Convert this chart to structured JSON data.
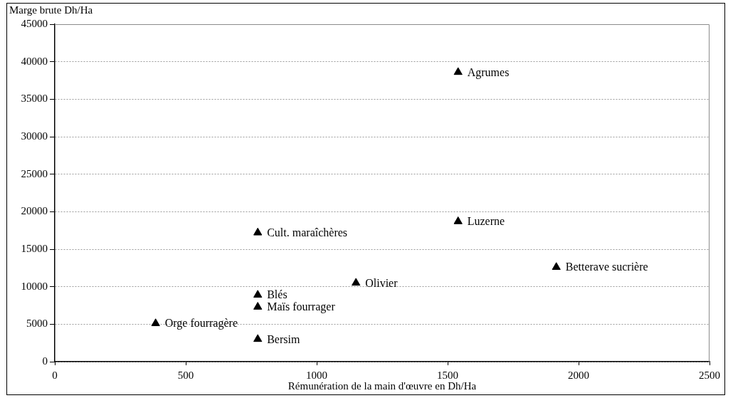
{
  "chart_data": {
    "type": "scatter",
    "ylabel": "Marge brute Dh/Ha",
    "xlabel": "Rémunération de la main d'œuvre en Dh/Ha",
    "x": [
      1540,
      1540,
      1915,
      1150,
      775,
      775,
      775,
      385,
      775
    ],
    "values": [
      38600,
      18700,
      12600,
      10500,
      17200,
      8900,
      7300,
      5100,
      3000
    ],
    "color": "#000000",
    "marker": "triangle",
    "xlim": [
      0,
      2500
    ],
    "xticks": [
      0,
      500,
      1000,
      1500,
      2000,
      2500
    ],
    "ylim": [
      0,
      45000
    ],
    "yticks": [
      0,
      5000,
      10000,
      15000,
      20000,
      25000,
      30000,
      35000,
      40000,
      45000
    ],
    "grid": "y",
    "annotations": [
      {
        "text": "Agrumes",
        "x": 1540,
        "y": 38600
      },
      {
        "text": "Luzerne",
        "x": 1540,
        "y": 18700
      },
      {
        "text": "Betterave sucrière",
        "x": 1915,
        "y": 12600
      },
      {
        "text": "Olivier",
        "x": 1150,
        "y": 10500
      },
      {
        "text": "Cult. maraîchères",
        "x": 775,
        "y": 17200
      },
      {
        "text": "Blés",
        "x": 775,
        "y": 8900
      },
      {
        "text": "Maïs fourrager",
        "x": 775,
        "y": 7300
      },
      {
        "text": "Orge fourragère",
        "x": 385,
        "y": 5100
      },
      {
        "text": "Bersim",
        "x": 775,
        "y": 3000
      }
    ]
  }
}
